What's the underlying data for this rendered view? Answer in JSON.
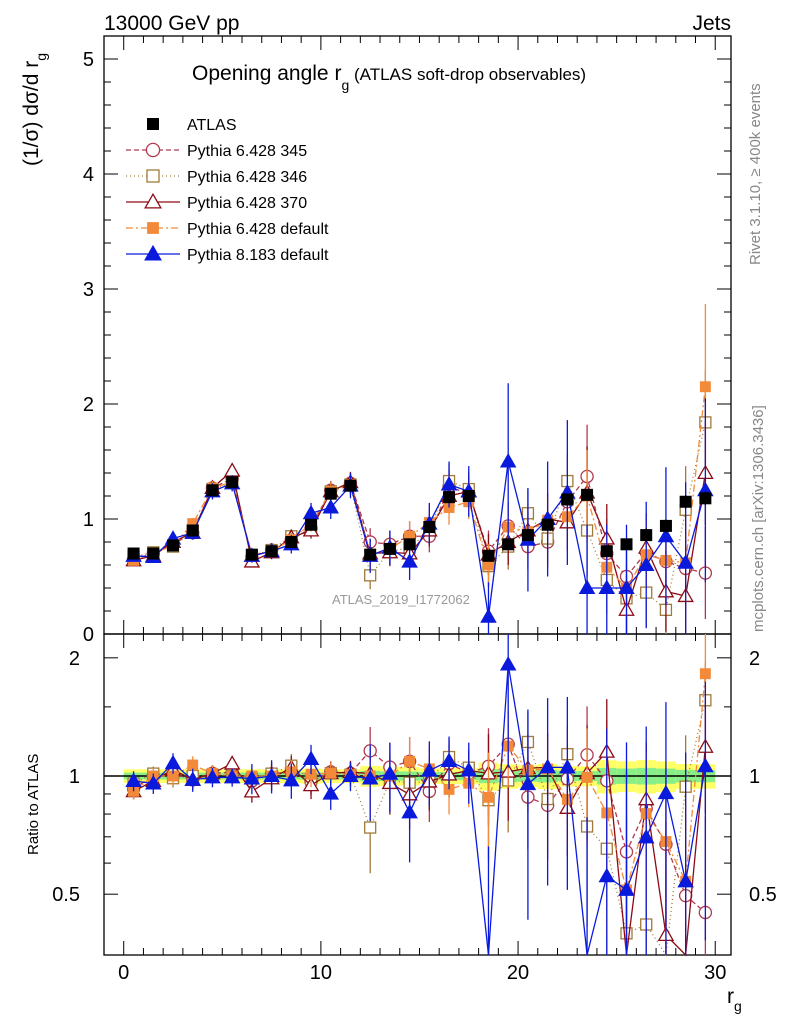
{
  "header": {
    "left": "13000 GeV pp",
    "right": "Jets"
  },
  "chart_data": {
    "type": "scatter",
    "title_main": "Opening angle r",
    "title_sub": "g",
    "title_rest": " (ATLAS soft-drop observables)",
    "ylabel_main": "(1/σ) dσ/d r",
    "ylabel_sub": "g",
    "xlabel_main": "r",
    "xlabel_sub": "g",
    "ratio_ylabel": "Ratio to ATLAS",
    "watermark": "ATLAS_2019_I1772062",
    "side_top": "Rivet 3.1.10, ≥ 400k events",
    "side_bottom": "mcplots.cern.ch [arXiv:1306.3436]",
    "xlim": [
      -1,
      30.8
    ],
    "ylim_main": [
      0,
      5.2
    ],
    "ylim_ratio": [
      0.35,
      2.3
    ],
    "x_ticks": [
      "0",
      "10",
      "20",
      "30"
    ],
    "x_tick_values": [
      0,
      10,
      20,
      30
    ],
    "y_ticks_main": [
      "0",
      "1",
      "2",
      "3",
      "4",
      "5"
    ],
    "y_tick_values_main": [
      0,
      1,
      2,
      3,
      4,
      5
    ],
    "y_ticks_ratio": [
      "0.5",
      "1",
      "2"
    ],
    "y_tick_values_ratio": [
      0.5,
      1,
      2
    ],
    "x": [
      0.5,
      1.5,
      2.5,
      3.5,
      4.5,
      5.5,
      6.5,
      7.5,
      8.5,
      9.5,
      10.5,
      11.5,
      12.5,
      13.5,
      14.5,
      15.5,
      16.5,
      17.5,
      18.5,
      19.5,
      20.5,
      21.5,
      22.5,
      23.5,
      24.5,
      25.5,
      26.5,
      27.5,
      28.5,
      29.5
    ],
    "data": {
      "name": "ATLAS",
      "color": "#000000",
      "values": [
        0.7,
        0.7,
        0.77,
        0.9,
        1.25,
        1.32,
        0.69,
        0.72,
        0.8,
        0.95,
        1.22,
        1.29,
        0.69,
        0.74,
        0.78,
        0.93,
        1.19,
        1.2,
        0.68,
        0.78,
        0.86,
        0.95,
        1.17,
        1.21,
        0.72,
        0.78,
        0.86,
        0.94,
        1.15,
        1.18
      ],
      "errors": [
        0.02,
        0.02,
        0.02,
        0.02,
        0.03,
        0.03,
        0.02,
        0.02,
        0.02,
        0.03,
        0.03,
        0.03,
        0.03,
        0.03,
        0.03,
        0.03,
        0.04,
        0.04,
        0.04,
        0.04,
        0.04,
        0.05,
        0.05,
        0.05,
        0.05,
        0.05,
        0.06,
        0.06,
        0.06,
        0.06
      ]
    },
    "series": [
      {
        "name": "Pythia 6.428 345",
        "color": "#b03a4f",
        "dash": "5,3",
        "marker": "circle",
        "values": [
          0.65,
          0.7,
          0.78,
          0.88,
          1.27,
          1.35,
          0.67,
          0.73,
          0.82,
          0.92,
          1.25,
          1.31,
          0.8,
          0.78,
          0.85,
          0.85,
          1.28,
          1.22,
          0.72,
          0.94,
          0.76,
          0.8,
          1.15,
          1.37,
          0.7,
          0.5,
          0.71,
          0.63,
          0.57,
          0.53
        ],
        "errors": [
          0.03,
          0.03,
          0.04,
          0.05,
          0.06,
          0.06,
          0.04,
          0.05,
          0.06,
          0.07,
          0.08,
          0.09,
          0.12,
          0.12,
          0.13,
          0.14,
          0.15,
          0.15,
          0.18,
          0.2,
          0.2,
          0.22,
          0.24,
          0.45,
          0.3,
          0.3,
          0.3,
          0.35,
          0.35,
          0.4
        ]
      },
      {
        "name": "Pythia 6.428 346",
        "color": "#a07a3a",
        "dash": "1,3",
        "marker": "square",
        "values": [
          0.67,
          0.71,
          0.76,
          0.9,
          1.26,
          1.32,
          0.68,
          0.73,
          0.85,
          0.93,
          1.24,
          1.3,
          0.51,
          0.72,
          0.75,
          0.9,
          1.33,
          1.26,
          0.59,
          0.76,
          1.05,
          0.83,
          1.33,
          0.9,
          0.47,
          0.31,
          0.36,
          0.21,
          1.08,
          1.84
        ],
        "errors": [
          0.03,
          0.03,
          0.04,
          0.05,
          0.06,
          0.06,
          0.04,
          0.05,
          0.06,
          0.07,
          0.08,
          0.09,
          0.12,
          0.12,
          0.13,
          0.14,
          0.15,
          0.15,
          0.18,
          0.2,
          0.2,
          0.22,
          0.24,
          0.4,
          0.3,
          0.3,
          0.3,
          0.35,
          0.38,
          0.45
        ]
      },
      {
        "name": "Pythia 6.428 370",
        "color": "#8b0a14",
        "dash": "",
        "marker": "triangle-open",
        "values": [
          0.64,
          0.68,
          0.8,
          0.88,
          1.27,
          1.42,
          0.63,
          0.71,
          0.84,
          0.9,
          1.24,
          1.32,
          0.7,
          0.71,
          0.7,
          0.9,
          1.2,
          1.24,
          0.69,
          0.8,
          0.9,
          1.0,
          0.97,
          1.23,
          0.83,
          0.21,
          0.75,
          0.37,
          0.33,
          1.4
        ],
        "errors": [
          0.03,
          0.03,
          0.04,
          0.05,
          0.06,
          0.06,
          0.04,
          0.05,
          0.06,
          0.07,
          0.08,
          0.09,
          0.12,
          0.12,
          0.13,
          0.14,
          0.15,
          0.15,
          0.18,
          0.2,
          0.2,
          0.22,
          0.24,
          0.4,
          0.3,
          0.3,
          0.3,
          0.35,
          0.38,
          0.45
        ]
      },
      {
        "name": "Pythia 6.428 default",
        "color": "#f28a3a",
        "dash": "7,3,2,3",
        "marker": "square-filled",
        "values": [
          0.64,
          0.7,
          0.77,
          0.96,
          1.27,
          1.32,
          0.69,
          0.72,
          0.82,
          0.96,
          1.24,
          1.3,
          0.69,
          0.74,
          0.85,
          0.97,
          1.1,
          1.15,
          0.6,
          0.93,
          0.89,
          0.99,
          1.02,
          1.2,
          0.58,
          0.4,
          0.69,
          0.64,
          0.62,
          2.15
        ],
        "errors": [
          0.03,
          0.03,
          0.04,
          0.05,
          0.06,
          0.06,
          0.04,
          0.05,
          0.06,
          0.07,
          0.08,
          0.09,
          0.12,
          0.12,
          0.13,
          0.14,
          0.15,
          0.15,
          0.18,
          0.2,
          0.2,
          0.22,
          0.24,
          0.4,
          0.3,
          0.3,
          0.3,
          0.35,
          0.38,
          0.72
        ]
      },
      {
        "name": "Pythia 8.183 default",
        "color": "#0a1adc",
        "dash": "",
        "marker": "triangle",
        "values": [
          0.68,
          0.67,
          0.83,
          0.88,
          1.24,
          1.31,
          0.68,
          0.72,
          0.78,
          1.05,
          1.1,
          1.29,
          0.68,
          0.75,
          0.63,
          0.96,
          1.3,
          1.24,
          0.15,
          1.5,
          0.82,
          1.0,
          1.23,
          0.4,
          0.4,
          0.4,
          0.6,
          0.85,
          0.62,
          1.25
        ],
        "errors": [
          0.04,
          0.04,
          0.05,
          0.06,
          0.07,
          0.07,
          0.06,
          0.07,
          0.08,
          0.09,
          0.1,
          0.11,
          0.15,
          0.15,
          0.16,
          0.18,
          0.2,
          0.22,
          0.3,
          0.68,
          0.45,
          0.5,
          0.63,
          0.55,
          0.55,
          0.55,
          0.55,
          0.6,
          0.7,
          0.8
        ]
      }
    ]
  }
}
